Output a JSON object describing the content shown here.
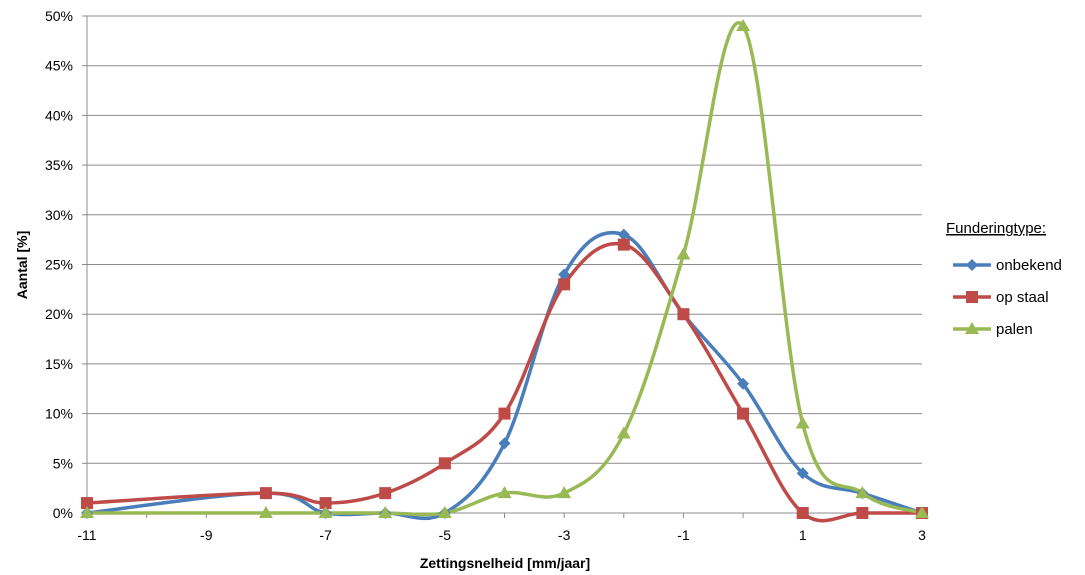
{
  "chart_data": {
    "type": "line",
    "title": "",
    "xlabel": "Zettingsnelheid [mm/jaar]",
    "ylabel": "Aantal [%]",
    "xlim": [
      -11,
      3
    ],
    "ylim": [
      0,
      50
    ],
    "x_tick_labels": [
      "-11",
      "-9",
      "-7",
      "-5",
      "-3",
      "-1",
      "1",
      "3"
    ],
    "y_tick_labels": [
      "0%",
      "5%",
      "10%",
      "15%",
      "20%",
      "25%",
      "30%",
      "35%",
      "40%",
      "45%",
      "50%"
    ],
    "grid": true,
    "legend_title": "Funderingtype:",
    "legend_position": "right",
    "series": [
      {
        "name": "onbekend",
        "color": "#4a7ebb",
        "marker": "diamond",
        "x": [
          -11,
          -8,
          -7,
          -6,
          -5,
          -4,
          -3,
          -2,
          -1,
          0,
          1,
          2,
          3
        ],
        "values": [
          0,
          2,
          0,
          0,
          0,
          7,
          24,
          28,
          20,
          13,
          4,
          2,
          0
        ]
      },
      {
        "name": "op staal",
        "color": "#be4b48",
        "marker": "square",
        "x": [
          -11,
          -8,
          -7,
          -6,
          -5,
          -4,
          -3,
          -2,
          -1,
          0,
          1,
          2,
          3
        ],
        "values": [
          1,
          2,
          1,
          2,
          5,
          10,
          23,
          27,
          20,
          10,
          0,
          0,
          0
        ]
      },
      {
        "name": "palen",
        "color": "#98b954",
        "marker": "triangle",
        "x": [
          -11,
          -8,
          -7,
          -6,
          -5,
          -4,
          -3,
          -2,
          -1,
          0,
          1,
          2,
          3
        ],
        "values": [
          0,
          0,
          0,
          0,
          0,
          2,
          2,
          8,
          26,
          49,
          9,
          2,
          0
        ]
      }
    ]
  }
}
